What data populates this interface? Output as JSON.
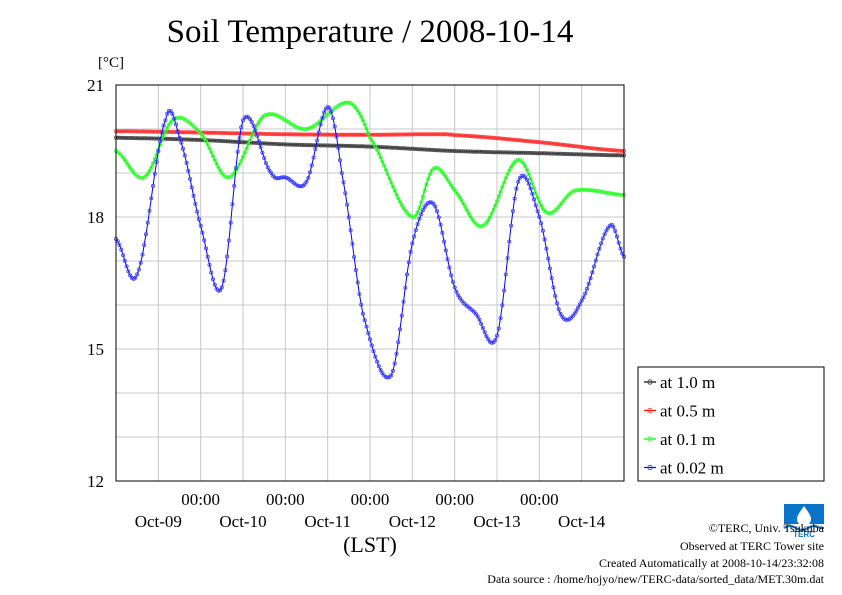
{
  "header": {
    "title": "Soil Temperature / 2008-10-14",
    "unit_label": "[°C]"
  },
  "footer": {
    "copyright": "©TERC, Univ. Tsukuba",
    "observed": "Observed at TERC Tower site",
    "created": "Created Automatically at 2008-10-14/23:32:08",
    "source": "Data source : /home/hojyo/new/TERC-data/sorted_data/MET.30m.dat"
  },
  "logo": {
    "text": "TERC",
    "color": "#0a74c8"
  },
  "chart_data": {
    "type": "line",
    "title": "Soil Temperature / 2008-10-14",
    "ylabel": "[°C]",
    "xlabel": "(LST)",
    "x_unit": "hours from Oct-08 12:00 LST",
    "xlim": [
      0,
      144
    ],
    "ylim": [
      12,
      21
    ],
    "yticks": [
      12,
      15,
      18,
      21
    ],
    "ygrid": [
      13,
      14,
      16,
      17,
      19,
      20
    ],
    "xticks": [
      {
        "x": 24,
        "time": "00:00",
        "date": "Oct-09"
      },
      {
        "x": 48,
        "time": "00:00",
        "date": "Oct-10"
      },
      {
        "x": 72,
        "time": "00:00",
        "date": "Oct-11"
      },
      {
        "x": 96,
        "time": "00:00",
        "date": "Oct-12"
      },
      {
        "x": 120,
        "time": "00:00",
        "date": "Oct-13"
      },
      {
        "x": 144,
        "time": "",
        "date": "Oct-14"
      }
    ],
    "xgrid": [
      12,
      24,
      36,
      48,
      60,
      72,
      84,
      96,
      108,
      120,
      132
    ],
    "grid": true,
    "legend_position": "right",
    "series": [
      {
        "name": "at 1.0 m",
        "color": "#000000",
        "marker_color": "#555555",
        "points": [
          [
            0,
            19.8
          ],
          [
            24,
            19.75
          ],
          [
            48,
            19.65
          ],
          [
            72,
            19.6
          ],
          [
            96,
            19.5
          ],
          [
            120,
            19.45
          ],
          [
            144,
            19.4
          ]
        ]
      },
      {
        "name": "at 0.5 m",
        "color": "#ff0000",
        "marker_color": "#ff4444",
        "points": [
          [
            0,
            19.95
          ],
          [
            24,
            19.92
          ],
          [
            48,
            19.88
          ],
          [
            72,
            19.87
          ],
          [
            90,
            19.88
          ],
          [
            96,
            19.86
          ],
          [
            120,
            19.7
          ],
          [
            144,
            19.5
          ]
        ]
      },
      {
        "name": "at 0.1 m",
        "color": "#00ee00",
        "marker_color": "#44ff44",
        "points": [
          [
            0,
            19.5
          ],
          [
            8,
            18.9
          ],
          [
            16,
            20.2
          ],
          [
            24,
            19.9
          ],
          [
            32,
            18.9
          ],
          [
            42,
            20.3
          ],
          [
            54,
            20.0
          ],
          [
            66,
            20.6
          ],
          [
            72,
            19.8
          ],
          [
            84,
            18.0
          ],
          [
            90,
            19.1
          ],
          [
            96,
            18.6
          ],
          [
            104,
            17.8
          ],
          [
            114,
            19.3
          ],
          [
            122,
            18.1
          ],
          [
            130,
            18.6
          ],
          [
            144,
            18.5
          ]
        ]
      },
      {
        "name": "at 0.02 m",
        "color": "#0000ff",
        "marker_color": "#4444ff",
        "points": [
          [
            0,
            17.5
          ],
          [
            6,
            16.7
          ],
          [
            14,
            20.2
          ],
          [
            18,
            19.8
          ],
          [
            24,
            17.8
          ],
          [
            30,
            16.4
          ],
          [
            36,
            20.2
          ],
          [
            44,
            19.0
          ],
          [
            48,
            18.9
          ],
          [
            54,
            18.8
          ],
          [
            60,
            20.5
          ],
          [
            64,
            19.0
          ],
          [
            70,
            15.8
          ],
          [
            78,
            14.4
          ],
          [
            84,
            17.4
          ],
          [
            90,
            18.3
          ],
          [
            96,
            16.4
          ],
          [
            102,
            15.8
          ],
          [
            108,
            15.3
          ],
          [
            114,
            18.8
          ],
          [
            120,
            18.0
          ],
          [
            126,
            15.8
          ],
          [
            132,
            16.1
          ],
          [
            140,
            17.8
          ],
          [
            144,
            17.1
          ]
        ]
      }
    ]
  }
}
